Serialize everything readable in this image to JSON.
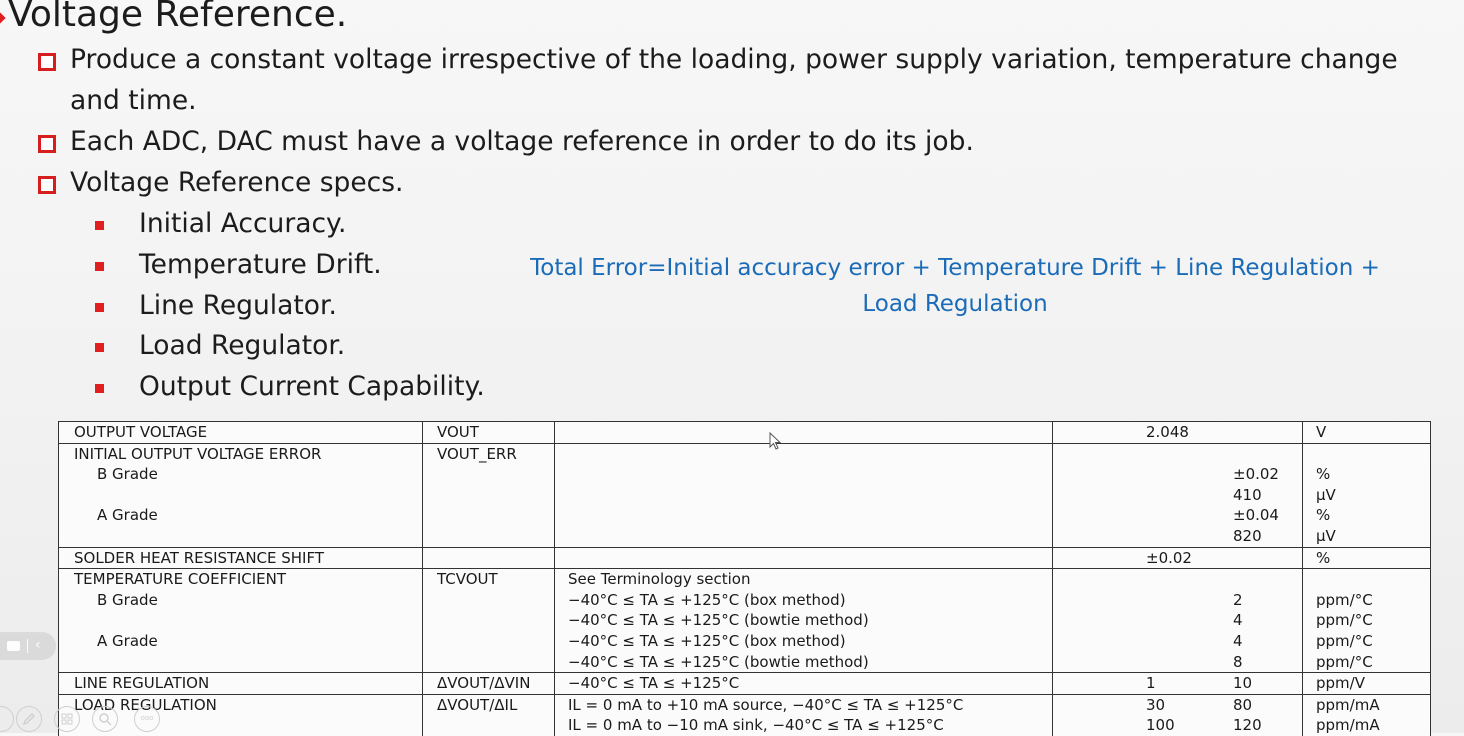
{
  "slide": {
    "title": "Voltage Reference.",
    "bullets": [
      "Produce a constant voltage irrespective of the loading, power supply variation, temperature change",
      "and time.",
      "Each ADC, DAC must have a voltage reference in order to do its job.",
      "Voltage Reference specs."
    ],
    "sub_bullets": [
      "Initial Accuracy.",
      "Temperature Drift.",
      "Line Regulator.",
      "Load Regulator.",
      "Output Current Capability."
    ],
    "formula_line1": "Total Error=Initial accuracy error + Temperature Drift + Line Regulation  +",
    "formula_line2": "Load Regulation",
    "colors": {
      "bullet_accent": "#d61e1e",
      "formula": "#1a6bb8"
    }
  },
  "spec_table": {
    "rows": [
      {
        "param": "OUTPUT VOLTAGE",
        "symbol": "VOUT",
        "cond": "",
        "min": "",
        "typ": "2.048",
        "max": "",
        "unit": "V"
      },
      {
        "param": "INITIAL OUTPUT VOLTAGE ERROR",
        "symbol": "VOUT_ERR",
        "cond": "",
        "min": "",
        "typ": "",
        "max": "",
        "unit": ""
      },
      {
        "param": "B Grade",
        "symbol": "",
        "cond": "",
        "min": "",
        "typ": "",
        "max": "±0.02",
        "unit": "%"
      },
      {
        "param": "",
        "symbol": "",
        "cond": "",
        "min": "",
        "typ": "",
        "max": "410",
        "unit": "µV"
      },
      {
        "param": "A Grade",
        "symbol": "",
        "cond": "",
        "min": "",
        "typ": "",
        "max": "±0.04",
        "unit": "%"
      },
      {
        "param": "",
        "symbol": "",
        "cond": "",
        "min": "",
        "typ": "",
        "max": "820",
        "unit": "µV"
      },
      {
        "param": "SOLDER HEAT RESISTANCE SHIFT",
        "symbol": "",
        "cond": "",
        "min": "",
        "typ": "±0.02",
        "max": "",
        "unit": "%"
      },
      {
        "param": "TEMPERATURE COEFFICIENT",
        "symbol": "TCVOUT",
        "cond": "See Terminology section",
        "min": "",
        "typ": "",
        "max": "",
        "unit": ""
      },
      {
        "param": "B Grade",
        "symbol": "",
        "cond": "−40°C ≤ TA ≤ +125°C (box method)",
        "min": "",
        "typ": "",
        "max": "2",
        "unit": "ppm/°C"
      },
      {
        "param": "",
        "symbol": "",
        "cond": "−40°C ≤ TA ≤ +125°C (bowtie method)",
        "min": "",
        "typ": "",
        "max": "4",
        "unit": "ppm/°C"
      },
      {
        "param": "A Grade",
        "symbol": "",
        "cond": "−40°C ≤ TA ≤ +125°C (box method)",
        "min": "",
        "typ": "",
        "max": "4",
        "unit": "ppm/°C"
      },
      {
        "param": "",
        "symbol": "",
        "cond": "−40°C ≤ TA ≤ +125°C (bowtie method)",
        "min": "",
        "typ": "",
        "max": "8",
        "unit": "ppm/°C"
      },
      {
        "param": "LINE REGULATION",
        "symbol": "ΔVOUT/ΔVIN",
        "cond": "−40°C ≤ TA ≤ +125°C",
        "min": "",
        "typ": "1",
        "max": "10",
        "unit": "ppm/V"
      },
      {
        "param": "LOAD REGULATION",
        "symbol": "ΔVOUT/ΔIL",
        "cond": "IL = 0 mA to +10 mA source, −40°C ≤ TA ≤ +125°C",
        "min": "",
        "typ": "30",
        "max": "80",
        "unit": "ppm/mA"
      },
      {
        "param": "",
        "symbol": "",
        "cond": "IL = 0 mA to −10 mA sink, −40°C ≤ TA ≤ +125°C",
        "min": "",
        "typ": "100",
        "max": "120",
        "unit": "ppm/mA"
      }
    ]
  },
  "toolbar": {
    "icons": [
      "chat-icon",
      "chevron-left-icon",
      "pen-icon",
      "slides-icon",
      "zoom-icon",
      "more-icon"
    ],
    "chevron_glyph": "‹",
    "more_glyph": "ooo"
  }
}
